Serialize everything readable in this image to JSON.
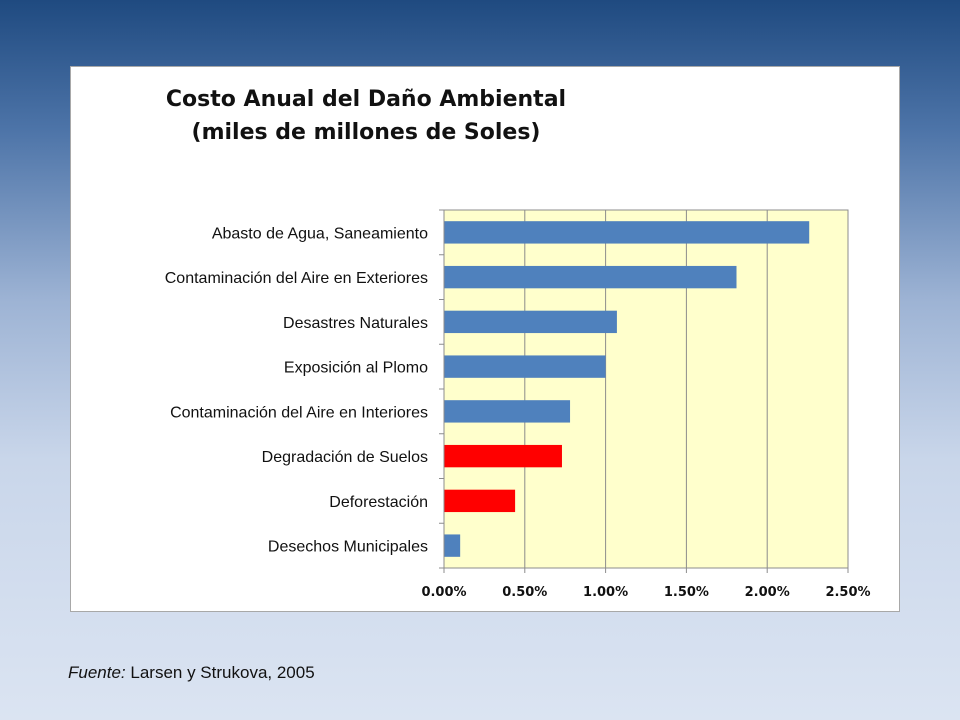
{
  "chart_data": {
    "type": "bar",
    "orientation": "horizontal",
    "title": "Costo Anual del Daño Ambiental",
    "subtitle": "(miles de millones de Soles)",
    "categories": [
      "Abasto de Agua, Saneamiento",
      "Contaminación del Aire en Exteriores",
      "Desastres Naturales",
      "Exposición al Plomo",
      "Contaminación del Aire en Interiores",
      "Degradación de Suelos",
      "Deforestación",
      "Desechos Municipales"
    ],
    "values": [
      2.26,
      1.81,
      1.07,
      1.0,
      0.78,
      0.73,
      0.44,
      0.1
    ],
    "bar_colors": [
      "#4f81bd",
      "#4f81bd",
      "#4f81bd",
      "#4f81bd",
      "#4f81bd",
      "#ff0000",
      "#ff0000",
      "#4f81bd"
    ],
    "xticks": [
      "0.00%",
      "0.50%",
      "1.00%",
      "1.50%",
      "2.00%",
      "2.50%"
    ],
    "xlim": [
      0,
      2.5
    ],
    "xlabel": "",
    "ylabel": "",
    "grid": "vertical",
    "plot_background": "#ffffcc",
    "legend": "none"
  },
  "source": {
    "label": "Fuente:",
    "text": " Larsen y Strukova, 2005"
  }
}
